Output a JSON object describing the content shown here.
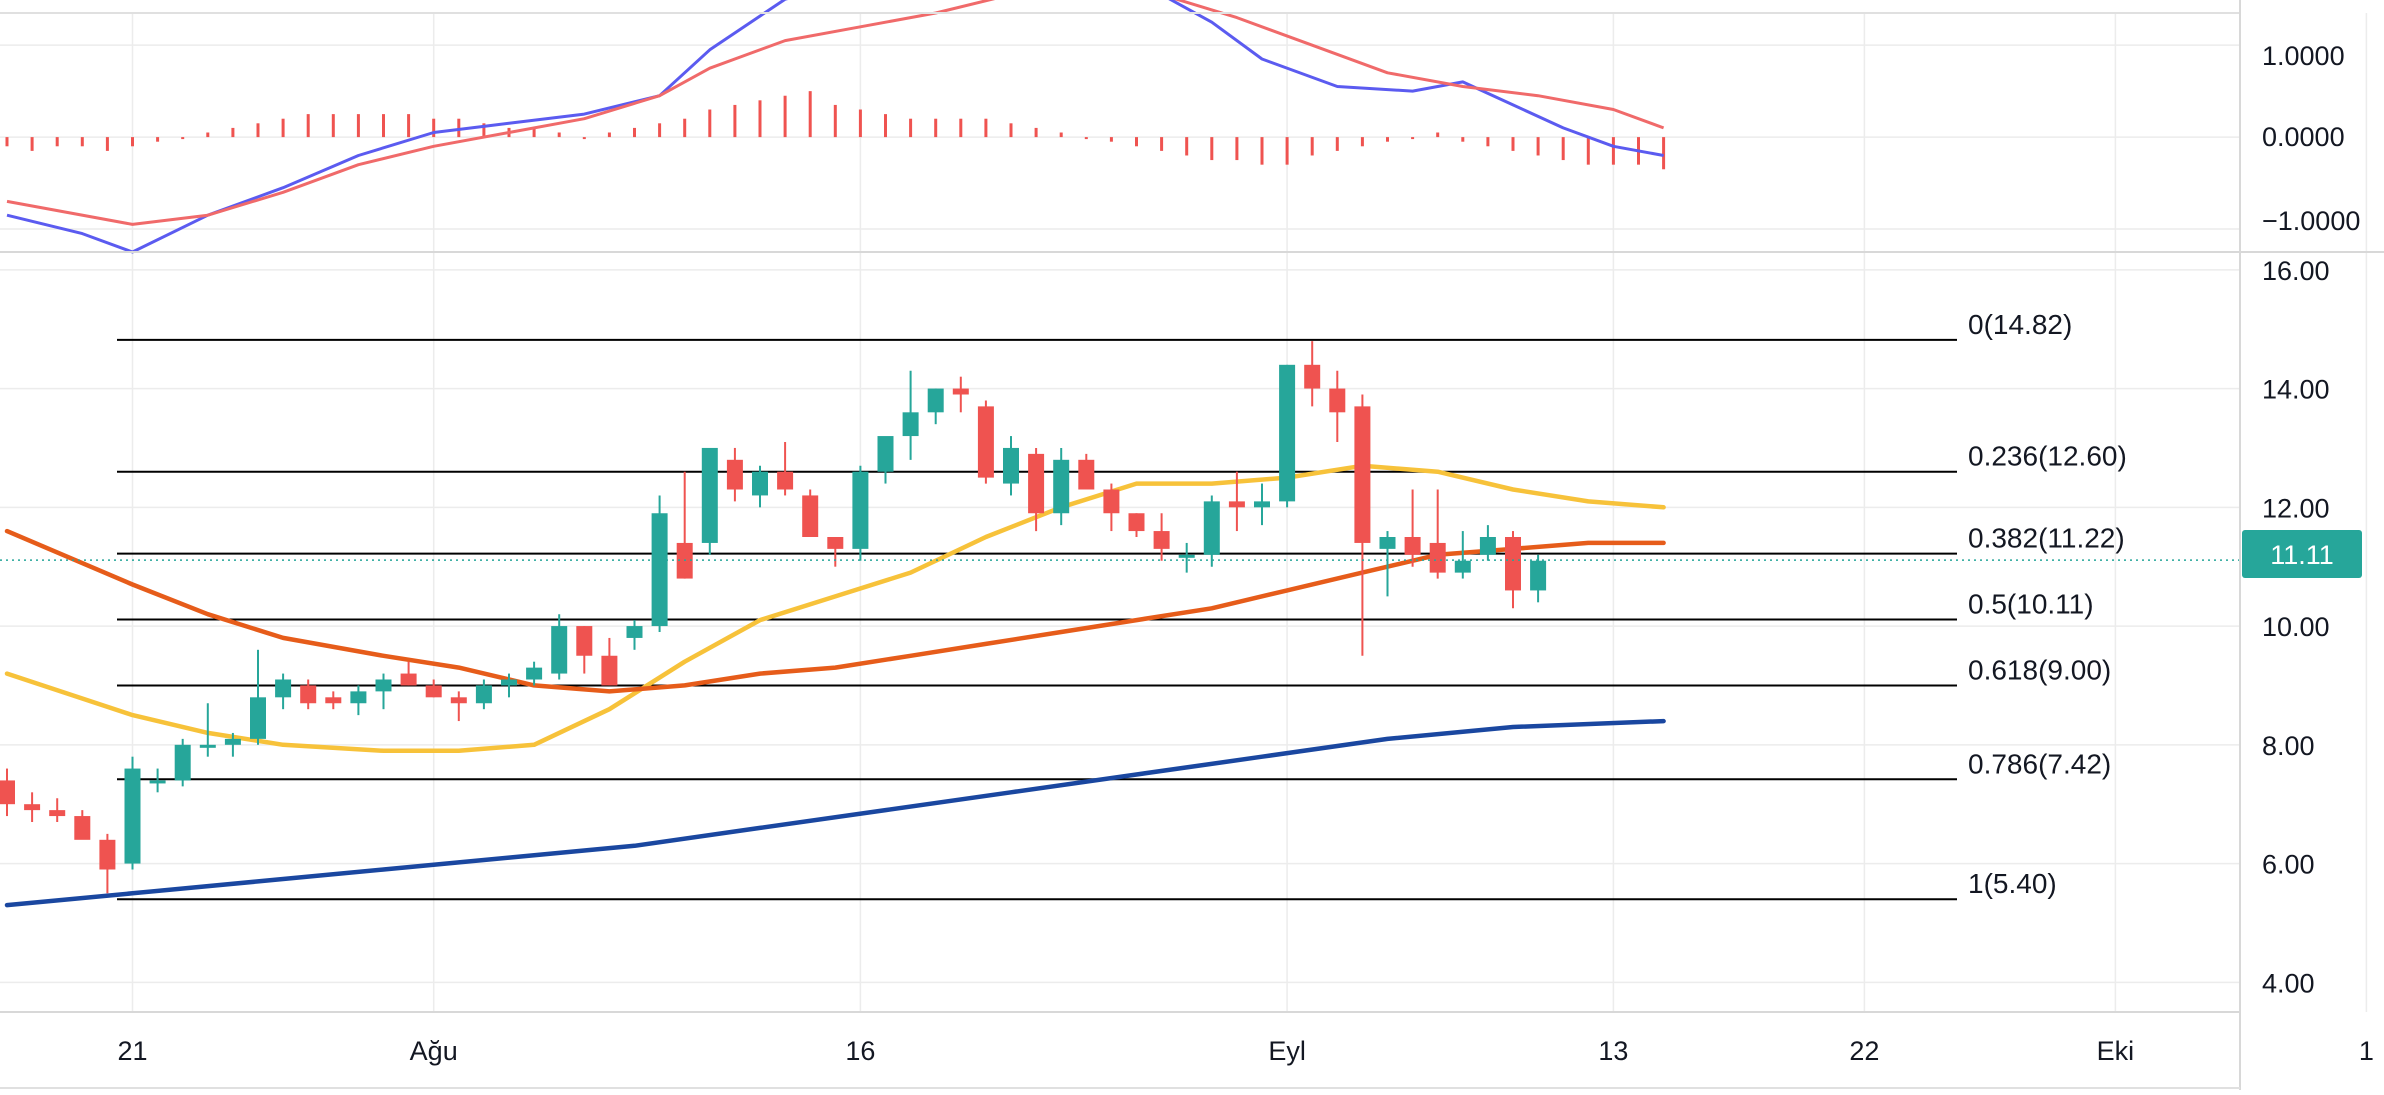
{
  "x_axis_labels": [
    "21",
    "Ağu",
    "16",
    "Eyl",
    "13",
    "22",
    "Eki",
    "1"
  ],
  "price_axis_ticks": [
    "4.00",
    "6.00",
    "8.00",
    "10.00",
    "12.00",
    "14.00",
    "16.00"
  ],
  "macd_axis_ticks": [
    "1.0000",
    "0.0000",
    "−1.0000"
  ],
  "current_price_label": "11.11",
  "colors": {
    "bull": "#26a69a",
    "bear": "#ef5350",
    "fast_ma": "#f7c23a",
    "mid_ma": "#e65c1a",
    "slow_ma": "#1a47a0",
    "macd": "#5b5bf0",
    "signal": "#f06a6a",
    "hist": "#ef5350",
    "fib_line": "#000000",
    "price_line": "#26a69a",
    "grid": "#ececec"
  },
  "chart_data": [
    {
      "type": "line",
      "panel": "macd",
      "ylim": [
        -1.25,
        1.35
      ],
      "y_ticks": [
        1.0,
        0.0,
        -1.0
      ],
      "series": [
        {
          "role": "macd",
          "color": "#5b5bf0",
          "points": [
            [
              0,
              -0.85
            ],
            [
              3,
              -1.05
            ],
            [
              5,
              -1.25
            ],
            [
              8,
              -0.85
            ],
            [
              11,
              -0.55
            ],
            [
              14,
              -0.2
            ],
            [
              17,
              0.05
            ],
            [
              20,
              0.15
            ],
            [
              23,
              0.25
            ],
            [
              26,
              0.45
            ],
            [
              28,
              0.95
            ],
            [
              31,
              1.5
            ],
            [
              34,
              1.7
            ],
            [
              37,
              1.55
            ],
            [
              40,
              1.8
            ],
            [
              42,
              2.0
            ],
            [
              44,
              1.85
            ],
            [
              46,
              1.55
            ],
            [
              48,
              1.25
            ],
            [
              50,
              0.85
            ],
            [
              53,
              0.55
            ],
            [
              56,
              0.5
            ],
            [
              58,
              0.6
            ],
            [
              60,
              0.35
            ],
            [
              62,
              0.1
            ],
            [
              64,
              -0.1
            ],
            [
              66,
              -0.2
            ]
          ]
        },
        {
          "role": "signal",
          "color": "#f06a6a",
          "points": [
            [
              0,
              -0.7
            ],
            [
              5,
              -0.95
            ],
            [
              8,
              -0.85
            ],
            [
              11,
              -0.6
            ],
            [
              14,
              -0.3
            ],
            [
              17,
              -0.1
            ],
            [
              20,
              0.05
            ],
            [
              23,
              0.2
            ],
            [
              26,
              0.45
            ],
            [
              28,
              0.75
            ],
            [
              31,
              1.05
            ],
            [
              34,
              1.2
            ],
            [
              37,
              1.35
            ],
            [
              40,
              1.55
            ],
            [
              43,
              1.7
            ],
            [
              46,
              1.55
            ],
            [
              49,
              1.3
            ],
            [
              52,
              1.0
            ],
            [
              55,
              0.7
            ],
            [
              58,
              0.55
            ],
            [
              61,
              0.45
            ],
            [
              64,
              0.3
            ],
            [
              66,
              0.1
            ]
          ]
        }
      ],
      "histogram": [
        -0.1,
        -0.15,
        -0.1,
        -0.1,
        -0.15,
        -0.1,
        -0.05,
        0,
        0.05,
        0.1,
        0.15,
        0.2,
        0.25,
        0.25,
        0.25,
        0.25,
        0.25,
        0.2,
        0.2,
        0.15,
        0.1,
        0.1,
        0.05,
        0,
        0.05,
        0.1,
        0.15,
        0.2,
        0.3,
        0.35,
        0.4,
        0.45,
        0.5,
        0.35,
        0.3,
        0.25,
        0.2,
        0.2,
        0.2,
        0.2,
        0.15,
        0.1,
        0.05,
        0,
        -0.05,
        -0.1,
        -0.15,
        -0.2,
        -0.25,
        -0.25,
        -0.3,
        -0.3,
        -0.2,
        -0.15,
        -0.1,
        -0.05,
        0,
        0.05,
        -0.05,
        -0.1,
        -0.15,
        -0.2,
        -0.25,
        -0.3,
        -0.3,
        -0.3,
        -0.35
      ]
    },
    {
      "type": "candlestick",
      "panel": "price",
      "ylim": [
        3.5,
        16.3
      ],
      "y_ticks": [
        4,
        6,
        8,
        10,
        12,
        14,
        16
      ],
      "candles": [
        [
          7.4,
          7.6,
          6.8,
          7.0
        ],
        [
          7.0,
          7.2,
          6.7,
          6.9
        ],
        [
          6.9,
          7.1,
          6.7,
          6.8
        ],
        [
          6.8,
          6.9,
          6.5,
          6.4
        ],
        [
          6.4,
          6.5,
          5.5,
          5.9
        ],
        [
          6.0,
          7.8,
          5.9,
          7.6
        ],
        [
          7.4,
          7.6,
          7.2,
          7.4
        ],
        [
          7.4,
          8.1,
          7.3,
          8.0
        ],
        [
          8.0,
          8.7,
          7.8,
          8.0
        ],
        [
          8.0,
          8.2,
          7.8,
          8.1
        ],
        [
          8.1,
          9.6,
          8.0,
          8.8
        ],
        [
          8.8,
          9.2,
          8.6,
          9.1
        ],
        [
          9.0,
          9.1,
          8.6,
          8.7
        ],
        [
          8.8,
          8.9,
          8.6,
          8.7
        ],
        [
          8.7,
          9.0,
          8.5,
          8.9
        ],
        [
          8.9,
          9.2,
          8.6,
          9.1
        ],
        [
          9.2,
          9.4,
          9.0,
          9.0
        ],
        [
          9.0,
          9.1,
          8.8,
          8.8
        ],
        [
          8.8,
          8.9,
          8.4,
          8.7
        ],
        [
          8.7,
          9.1,
          8.6,
          9.0
        ],
        [
          9.0,
          9.2,
          8.8,
          9.1
        ],
        [
          9.1,
          9.4,
          9.0,
          9.3
        ],
        [
          9.2,
          10.2,
          9.1,
          10.0
        ],
        [
          10.0,
          10.0,
          9.2,
          9.5
        ],
        [
          9.5,
          9.8,
          9.0,
          9.0
        ],
        [
          9.8,
          10.1,
          9.6,
          10.0
        ],
        [
          10.0,
          12.2,
          9.9,
          11.9
        ],
        [
          11.4,
          12.6,
          10.8,
          10.8
        ],
        [
          11.4,
          13.0,
          11.2,
          13.0
        ],
        [
          12.8,
          13.0,
          12.1,
          12.3
        ],
        [
          12.2,
          12.7,
          12.0,
          12.6
        ],
        [
          12.6,
          13.1,
          12.2,
          12.3
        ],
        [
          12.2,
          12.3,
          11.5,
          11.5
        ],
        [
          11.5,
          11.5,
          11.0,
          11.3
        ],
        [
          11.3,
          12.7,
          11.1,
          12.6
        ],
        [
          12.6,
          13.1,
          12.4,
          13.2
        ],
        [
          13.2,
          14.3,
          12.8,
          13.6
        ],
        [
          13.6,
          14.0,
          13.4,
          14.0
        ],
        [
          14.0,
          14.2,
          13.6,
          13.9
        ],
        [
          13.7,
          13.8,
          12.4,
          12.5
        ],
        [
          12.4,
          13.2,
          12.2,
          13.0
        ],
        [
          12.9,
          13.0,
          11.6,
          11.9
        ],
        [
          11.9,
          13.0,
          11.7,
          12.8
        ],
        [
          12.8,
          12.9,
          12.3,
          12.3
        ],
        [
          12.3,
          12.4,
          11.6,
          11.9
        ],
        [
          11.9,
          11.9,
          11.5,
          11.6
        ],
        [
          11.6,
          11.9,
          11.1,
          11.3
        ],
        [
          11.2,
          11.4,
          10.9,
          11.2
        ],
        [
          11.2,
          12.2,
          11.0,
          12.1
        ],
        [
          12.1,
          12.6,
          11.6,
          12.0
        ],
        [
          12.0,
          12.4,
          11.7,
          12.1
        ],
        [
          12.1,
          14.4,
          12.0,
          14.4
        ],
        [
          14.4,
          14.8,
          13.7,
          14.0
        ],
        [
          14.0,
          14.3,
          13.1,
          13.6
        ],
        [
          13.7,
          13.9,
          9.5,
          11.4
        ],
        [
          11.3,
          11.6,
          10.5,
          11.5
        ],
        [
          11.5,
          12.3,
          11.0,
          11.2
        ],
        [
          11.4,
          12.3,
          10.8,
          10.9
        ],
        [
          10.9,
          11.6,
          10.8,
          11.1
        ],
        [
          11.2,
          11.7,
          11.1,
          11.5
        ],
        [
          11.5,
          11.6,
          10.3,
          10.6
        ],
        [
          10.6,
          11.2,
          10.4,
          11.1
        ]
      ],
      "moving_averages": [
        {
          "color": "#f7c23a",
          "points": [
            [
              0,
              9.2
            ],
            [
              5,
              8.5
            ],
            [
              8,
              8.2
            ],
            [
              11,
              8.0
            ],
            [
              15,
              7.9
            ],
            [
              18,
              7.9
            ],
            [
              21,
              8.0
            ],
            [
              24,
              8.6
            ],
            [
              27,
              9.4
            ],
            [
              30,
              10.1
            ],
            [
              33,
              10.5
            ],
            [
              36,
              10.9
            ],
            [
              39,
              11.5
            ],
            [
              42,
              12.0
            ],
            [
              45,
              12.4
            ],
            [
              48,
              12.4
            ],
            [
              51,
              12.5
            ],
            [
              54,
              12.7
            ],
            [
              57,
              12.6
            ],
            [
              60,
              12.3
            ],
            [
              63,
              12.1
            ],
            [
              66,
              12.0
            ]
          ]
        },
        {
          "color": "#e65c1a",
          "points": [
            [
              0,
              11.6
            ],
            [
              5,
              10.7
            ],
            [
              8,
              10.2
            ],
            [
              11,
              9.8
            ],
            [
              15,
              9.5
            ],
            [
              18,
              9.3
            ],
            [
              21,
              9.0
            ],
            [
              24,
              8.9
            ],
            [
              27,
              9.0
            ],
            [
              30,
              9.2
            ],
            [
              33,
              9.3
            ],
            [
              36,
              9.5
            ],
            [
              39,
              9.7
            ],
            [
              42,
              9.9
            ],
            [
              45,
              10.1
            ],
            [
              48,
              10.3
            ],
            [
              51,
              10.6
            ],
            [
              54,
              10.9
            ],
            [
              57,
              11.2
            ],
            [
              60,
              11.3
            ],
            [
              63,
              11.4
            ],
            [
              66,
              11.4
            ]
          ]
        },
        {
          "color": "#1a47a0",
          "points": [
            [
              0,
              5.3
            ],
            [
              5,
              5.5
            ],
            [
              10,
              5.7
            ],
            [
              15,
              5.9
            ],
            [
              20,
              6.1
            ],
            [
              25,
              6.3
            ],
            [
              30,
              6.6
            ],
            [
              35,
              6.9
            ],
            [
              40,
              7.2
            ],
            [
              45,
              7.5
            ],
            [
              50,
              7.8
            ],
            [
              55,
              8.1
            ],
            [
              60,
              8.3
            ],
            [
              66,
              8.4
            ]
          ]
        }
      ],
      "fibonacci_levels": [
        {
          "label": "0(14.82)",
          "value": 14.82
        },
        {
          "label": "0.236(12.60)",
          "value": 12.6
        },
        {
          "label": "0.382(11.22)",
          "value": 11.22
        },
        {
          "label": "0.5(10.11)",
          "value": 10.11
        },
        {
          "label": "0.618(9.00)",
          "value": 9.0
        },
        {
          "label": "0.786(7.42)",
          "value": 7.42
        },
        {
          "label": "1(5.40)",
          "value": 5.4
        }
      ],
      "current_price": 11.11,
      "x_axis": {
        "labels": [
          "21",
          "Ağu",
          "16",
          "Eyl",
          "13",
          "22",
          "Eki",
          "1"
        ],
        "positions": [
          5,
          17,
          34,
          51,
          64,
          74,
          84,
          94
        ]
      },
      "grid": true
    }
  ]
}
